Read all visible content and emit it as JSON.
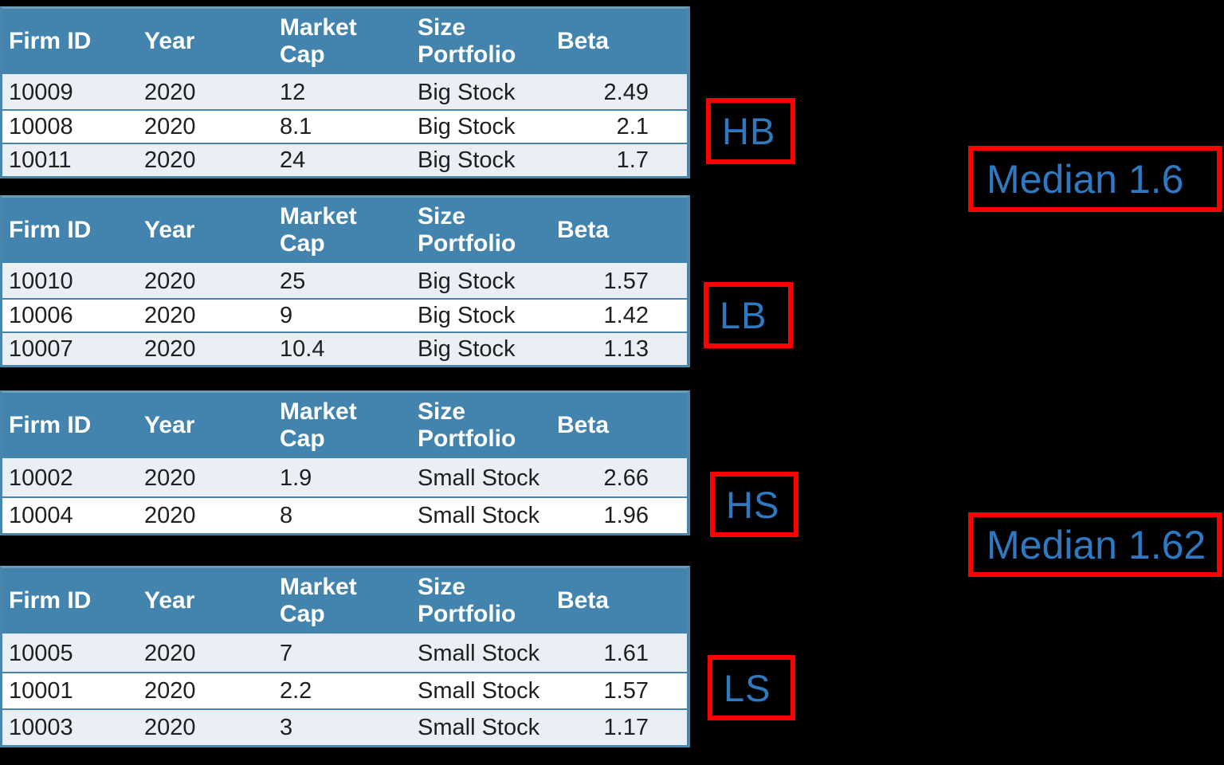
{
  "colors": {
    "background": "#000000",
    "table_header_bg": "#4284ad",
    "row_light": "#e9eff4",
    "row_white": "#ffffff",
    "grid_blue": "#4a86ac",
    "annotation_red": "#ff0000",
    "annotation_blue": "#2e79c0",
    "header_text": "#ffffff",
    "body_text": "#1f1f1f"
  },
  "tables": [
    {
      "group": "HB",
      "headers": [
        "Firm ID",
        "Year",
        "Market Cap",
        "Size Portfolio",
        "Beta"
      ],
      "rows": [
        [
          "10009",
          "2020",
          "12",
          "Big Stock",
          "2.49"
        ],
        [
          "10008",
          "2020",
          "8.1",
          "Big Stock",
          "2.1"
        ],
        [
          "10011",
          "2020",
          "24",
          "Big Stock",
          "1.7"
        ]
      ]
    },
    {
      "group": "LB",
      "headers": [
        "Firm ID",
        "Year",
        "Market Cap",
        "Size Portfolio",
        "Beta"
      ],
      "rows": [
        [
          "10010",
          "2020",
          "25",
          "Big Stock",
          "1.57"
        ],
        [
          "10006",
          "2020",
          "9",
          "Big Stock",
          "1.42"
        ],
        [
          "10007",
          "2020",
          "10.4",
          "Big Stock",
          "1.13"
        ]
      ]
    },
    {
      "group": "HS",
      "headers": [
        "Firm ID",
        "Year",
        "Market Cap",
        "Size Portfolio",
        "Beta"
      ],
      "rows": [
        [
          "10002",
          "2020",
          "1.9",
          "Small Stock",
          "2.66"
        ],
        [
          "10004",
          "2020",
          "8",
          "Small Stock",
          "1.96"
        ]
      ]
    },
    {
      "group": "LS",
      "headers": [
        "Firm ID",
        "Year",
        "Market Cap",
        "Size Portfolio",
        "Beta"
      ],
      "rows": [
        [
          "10005",
          "2020",
          "7",
          "Small Stock",
          "1.61"
        ],
        [
          "10001",
          "2020",
          "2.2",
          "Small Stock",
          "1.57"
        ],
        [
          "10003",
          "2020",
          "3",
          "Small Stock",
          "1.17"
        ]
      ]
    }
  ],
  "annotations": {
    "group_labels": [
      "HB",
      "LB",
      "HS",
      "LS"
    ],
    "medians": [
      "Median 1.6",
      "Median 1.62"
    ]
  }
}
